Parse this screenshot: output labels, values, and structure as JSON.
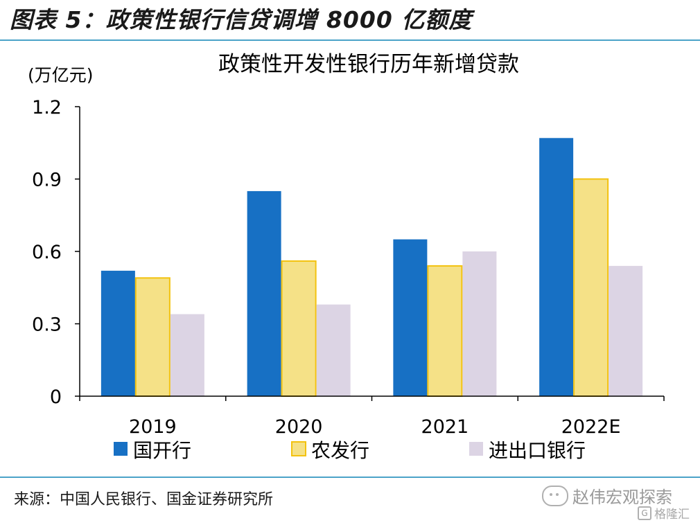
{
  "figure_label": "图表 5：政策性银行信贷调增 8000 亿额度",
  "source": "来源：中国人民银行、国金证券研究所",
  "watermark": {
    "text": "赵伟宏观探索",
    "sub": "格隆汇",
    "icon": "wechat-icon",
    "sub_icon": "gelonghui-logo-icon"
  },
  "colors": {
    "rule": "#4aa3c8",
    "series": [
      "#1770c4",
      "#f5e187",
      "#dcd4e4"
    ],
    "series_edge": [
      "#1770c4",
      "#f3c20f",
      "#dcd4e4"
    ]
  },
  "chart_data": {
    "type": "bar",
    "title": "政策性开发性银行历年新增贷款",
    "ylabel": "(万亿元)",
    "xlabel": "",
    "categories": [
      "2019",
      "2020",
      "2021",
      "2022E"
    ],
    "series": [
      {
        "name": "国开行",
        "values": [
          0.52,
          0.85,
          0.65,
          1.07
        ]
      },
      {
        "name": "农发行",
        "values": [
          0.49,
          0.56,
          0.54,
          0.9
        ]
      },
      {
        "name": "进出口银行",
        "values": [
          0.34,
          0.38,
          0.6,
          0.54
        ]
      }
    ],
    "ylim": [
      0,
      1.2
    ],
    "yticks": [
      "0",
      "0.3",
      "0.6",
      "0.9",
      "1.2"
    ],
    "grid": false,
    "legend": "bottom"
  }
}
